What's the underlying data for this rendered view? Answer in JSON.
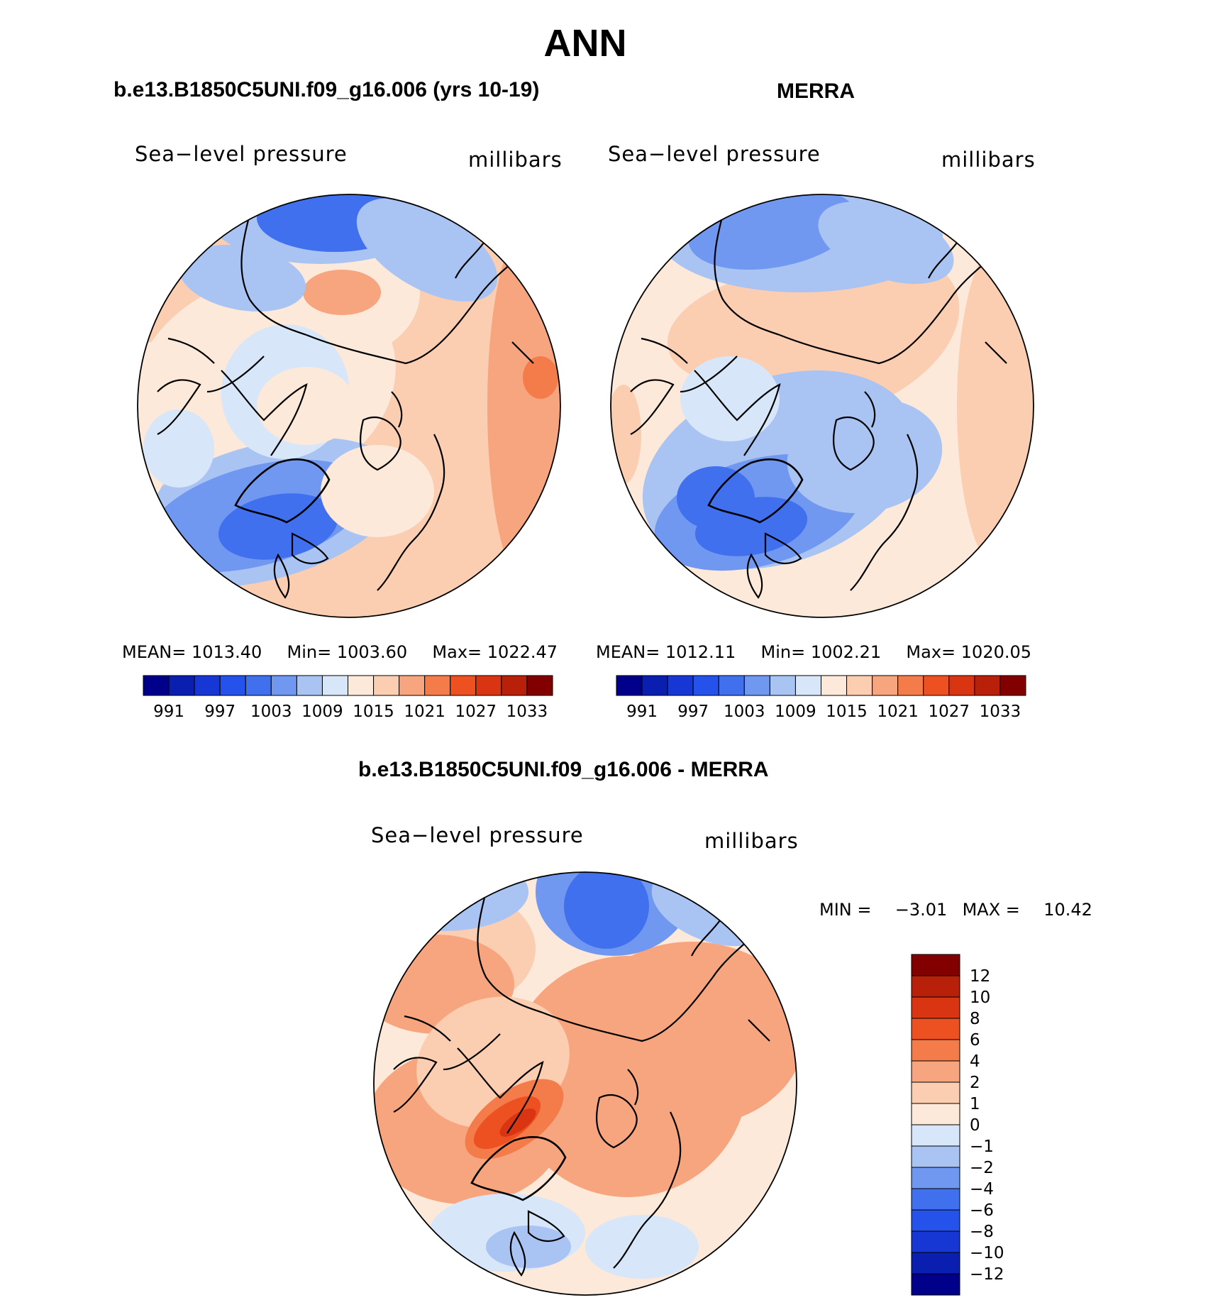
{
  "page": {
    "season_title": "ANN",
    "colors": {
      "scale": [
        "#00008b",
        "#0a1fb0",
        "#1637d3",
        "#2552ea",
        "#4170ee",
        "#7198f0",
        "#a9c4f3",
        "#d7e6f8",
        "#fde9d9",
        "#fbcdb1",
        "#f7a57e",
        "#f47c4a",
        "#ee5121",
        "#da3512",
        "#b8200a",
        "#820000"
      ]
    }
  },
  "chart_data": [
    {
      "type": "heatmap",
      "panel": "model",
      "title": "b.e13.B1850C5UNI.f09_g16.006 (yrs 10-19)",
      "left_label": "Sea−level pressure",
      "right_label": "millibars",
      "stats": {
        "mean_label": "MEAN=",
        "mean": "1013.40",
        "min_label": "Min=",
        "min": "1003.60",
        "max_label": "Max=",
        "max": "1022.47"
      },
      "colorbar_ticks": [
        "991",
        "997",
        "1003",
        "1009",
        "1015",
        "1021",
        "1027",
        "1033"
      ],
      "colorbar_levels": 16,
      "projection": "north polar stereographic"
    },
    {
      "type": "heatmap",
      "panel": "observations",
      "title": "MERRA",
      "left_label": "Sea−level pressure",
      "right_label": "millibars",
      "stats": {
        "mean_label": "MEAN=",
        "mean": "1012.11",
        "min_label": "Min=",
        "min": "1002.21",
        "max_label": "Max=",
        "max": "1020.05"
      },
      "colorbar_ticks": [
        "991",
        "997",
        "1003",
        "1009",
        "1015",
        "1021",
        "1027",
        "1033"
      ],
      "colorbar_levels": 16,
      "projection": "north polar stereographic"
    },
    {
      "type": "heatmap",
      "panel": "difference",
      "title": "b.e13.B1850C5UNI.f09_g16.006 - MERRA",
      "left_label": "Sea−level pressure",
      "right_label": "millibars",
      "minmax": {
        "min_label": "MIN =",
        "min": "−3.01",
        "max_label": "MAX =",
        "max": "10.42"
      },
      "colorbar_ticks": [
        "12",
        "10",
        "8",
        "6",
        "4",
        "2",
        "1",
        "0",
        "−1",
        "−2",
        "−4",
        "−6",
        "−8",
        "−10",
        "−12"
      ],
      "colorbar_levels": 16,
      "projection": "north polar stereographic"
    }
  ]
}
